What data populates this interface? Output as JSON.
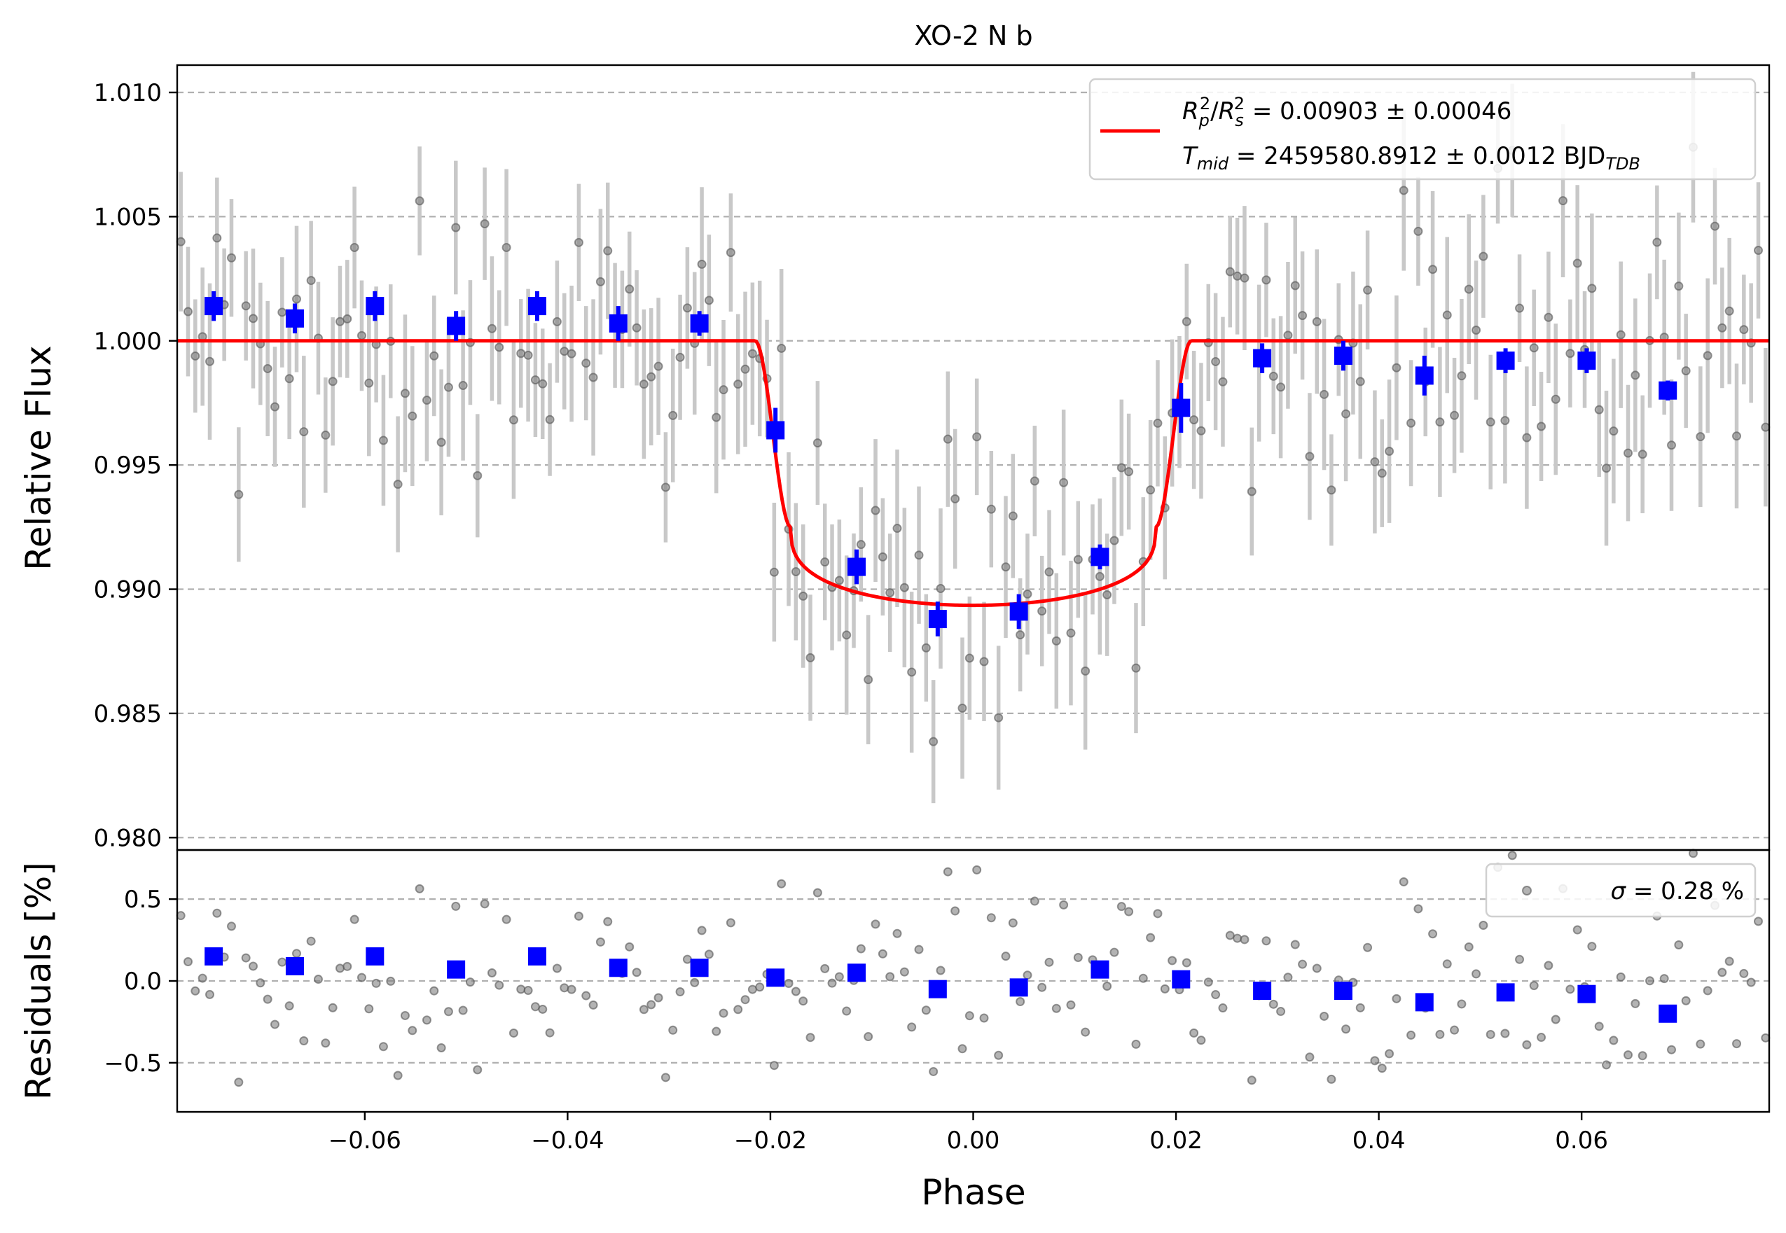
{
  "chart_data": {
    "type": "scatter",
    "title": "XO-2 N b",
    "xlabel": "Phase",
    "x_ticks": [
      -0.06,
      -0.04,
      -0.02,
      0.0,
      0.02,
      0.04,
      0.06
    ],
    "x_tick_labels": [
      "−0.06",
      "−0.04",
      "−0.02",
      "0.00",
      "0.02",
      "0.04",
      "0.06"
    ],
    "xlim": [
      -0.0785,
      0.0785
    ],
    "grid": "horizontal dashed",
    "flux_panel": {
      "ylabel": "Relative Flux",
      "ylim": [
        0.9795,
        1.0111
      ],
      "y_ticks": [
        0.98,
        0.985,
        0.99,
        0.995,
        1.0,
        1.005,
        1.01
      ],
      "y_tick_labels": [
        "0.980",
        "0.985",
        "0.990",
        "0.995",
        "1.000",
        "1.005",
        "1.010"
      ],
      "legend_placement": "top-right",
      "legend": {
        "rp_label": "R",
        "rp_sub": "p",
        "rp_sup": "2",
        "rs_label": "R",
        "rs_sub": "s",
        "rs_sup": "2",
        "depth_value": " = 0.00903 ± 0.00046",
        "tmid_label": "T",
        "tmid_sub": "mid",
        "tmid_value": " = 2459580.8912 ± 0.0012 BJD",
        "tmid_unit_sub": "TDB"
      },
      "model": {
        "series_color": "#ff0000",
        "baseline": 1.0,
        "depth_center": 0.98935,
        "ingress_start": -0.0215,
        "ingress_end": -0.018,
        "egress_start": 0.018,
        "egress_end": 0.0215,
        "contact_flux": 0.9925
      },
      "binned": {
        "color": "#0000ff",
        "x": [
          -0.0749,
          -0.0669,
          -0.059,
          -0.051,
          -0.043,
          -0.035,
          -0.027,
          -0.0195,
          -0.0115,
          -0.0035,
          0.0045,
          0.0125,
          0.0205,
          0.0285,
          0.0365,
          0.0445,
          0.0525,
          0.0605,
          0.0685
        ],
        "y": [
          1.0014,
          1.0009,
          1.0014,
          1.0006,
          1.0014,
          1.0007,
          1.0007,
          0.9964,
          0.9909,
          0.9888,
          0.9891,
          0.9913,
          0.9973,
          0.9993,
          0.9994,
          0.9986,
          0.9992,
          0.9992,
          0.998
        ],
        "err": [
          0.0006,
          0.0006,
          0.0006,
          0.0006,
          0.0006,
          0.0007,
          0.0005,
          0.0009,
          0.0007,
          0.0007,
          0.0007,
          0.0005,
          0.001,
          0.0006,
          0.0006,
          0.0008,
          0.0005,
          0.0005,
          0.0004
        ]
      }
    },
    "residual_panel": {
      "ylabel": "Residuals [%]",
      "ylim": [
        -0.8,
        0.8
      ],
      "y_ticks": [
        -0.5,
        0.0,
        0.5
      ],
      "y_tick_labels": [
        "−0.5",
        "0.0",
        "0.5"
      ],
      "legend_placement": "top-right",
      "legend": {
        "sigma_symbol": "σ",
        "sigma_value": " = 0.28 %"
      },
      "binned_y": [
        0.15,
        0.09,
        0.15,
        0.07,
        0.15,
        0.08,
        0.08,
        0.02,
        0.05,
        -0.05,
        -0.04,
        0.07,
        0.01,
        -0.06,
        -0.06,
        -0.13,
        -0.07,
        -0.08,
        -0.2
      ]
    },
    "raw": {
      "color": "#808080",
      "count": 220,
      "errbar_color": "#c8c8c8",
      "typical_err": 0.0027,
      "residual_scatter_pct": 0.28
    }
  }
}
